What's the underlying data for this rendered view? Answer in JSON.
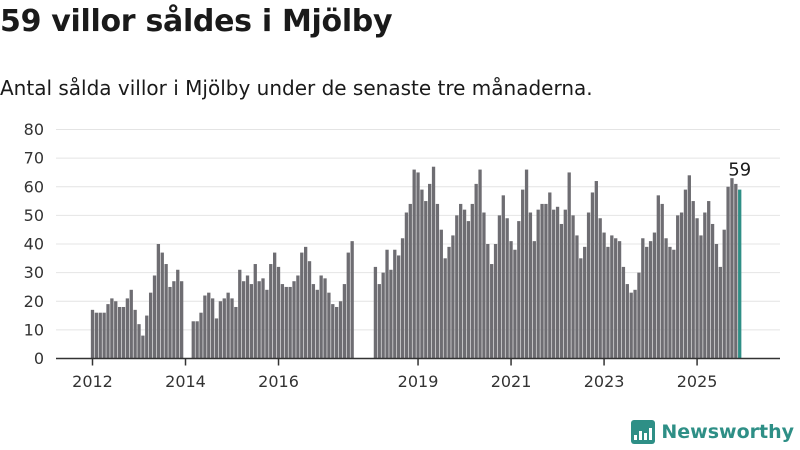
{
  "title": "59 villor såldes i Mjölby",
  "subtitle": "Antal sålda villor i Mjölby under de senaste tre månaderna.",
  "brand": {
    "name": "Newsworthy",
    "icon": "newsworthy-logo-icon"
  },
  "chart_data": {
    "type": "bar",
    "title": "59 villor såldes i Mjölby",
    "subtitle": "Antal sålda villor i Mjölby under de senaste tre månaderna.",
    "xlabel": "",
    "ylabel": "",
    "ylim": [
      0,
      80
    ],
    "yticks": [
      0,
      10,
      20,
      30,
      40,
      50,
      60,
      70,
      80
    ],
    "grid": true,
    "legend": "none",
    "x_start": "2012-01",
    "x_tick_labels": [
      "2012",
      "2014",
      "2016",
      "2019",
      "2021",
      "2023",
      "2025"
    ],
    "x_tick_months": [
      "2012-01",
      "2014-01",
      "2016-01",
      "2019-01",
      "2021-01",
      "2023-01",
      "2025-01"
    ],
    "gaps": [
      {
        "from": "2014-01",
        "to": "2014-02"
      },
      {
        "from": "2017-12",
        "to": "2018-04"
      }
    ],
    "bar_color": "#6e6d72",
    "highlight_color": "#2e8f86",
    "highlight_label": "59",
    "values": [
      17,
      16,
      16,
      16,
      19,
      21,
      20,
      18,
      18,
      21,
      24,
      17,
      12,
      8,
      15,
      23,
      29,
      40,
      37,
      33,
      25,
      27,
      31,
      27,
      0,
      0,
      13,
      13,
      16,
      22,
      23,
      21,
      14,
      20,
      21,
      23,
      21,
      18,
      31,
      27,
      29,
      26,
      33,
      27,
      28,
      24,
      33,
      37,
      32,
      26,
      25,
      25,
      27,
      29,
      37,
      39,
      34,
      26,
      24,
      29,
      28,
      23,
      19,
      18,
      20,
      26,
      37,
      41,
      0,
      0,
      0,
      0,
      0,
      32,
      26,
      30,
      38,
      31,
      38,
      36,
      42,
      51,
      54,
      66,
      65,
      59,
      55,
      61,
      67,
      54,
      45,
      35,
      39,
      43,
      50,
      54,
      52,
      48,
      54,
      61,
      66,
      51,
      40,
      33,
      40,
      50,
      57,
      49,
      41,
      38,
      48,
      59,
      66,
      51,
      41,
      52,
      54,
      54,
      58,
      52,
      53,
      47,
      52,
      65,
      50,
      43,
      35,
      39,
      51,
      58,
      62,
      49,
      44,
      39,
      43,
      42,
      41,
      32,
      26,
      23,
      24,
      30,
      42,
      39,
      41,
      44,
      57,
      54,
      42,
      39,
      38,
      50,
      51,
      59,
      64,
      55,
      49,
      43,
      51,
      55,
      47,
      40,
      32,
      45,
      60,
      63,
      61,
      59
    ]
  }
}
